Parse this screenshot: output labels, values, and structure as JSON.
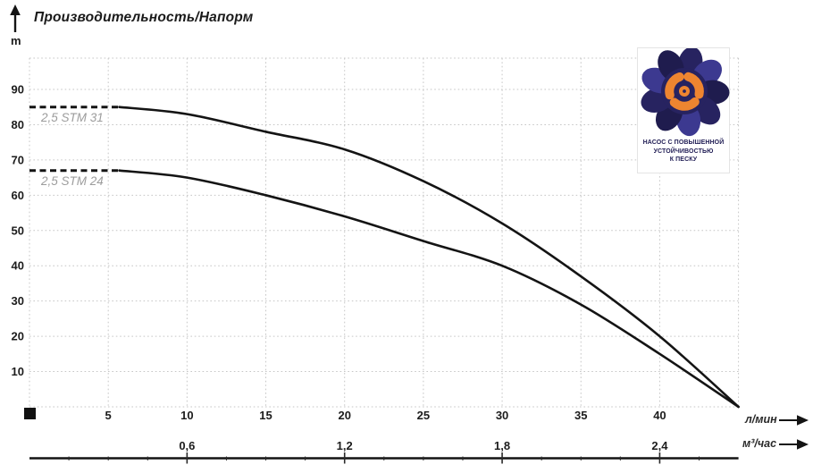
{
  "title": "Производительность/Напорм",
  "y_unit_label": "m",
  "axis1_unit": "л/мин",
  "axis2_unit": "м³/час",
  "logo": {
    "line1": "НАСОС С ПОВЫШЕННОЙ",
    "line2": "УСТОЙЧИВОСТЬЮ",
    "line3": "К ПЕСКУ"
  },
  "colors": {
    "curve": "#141414",
    "grid": "#c6c6c6",
    "axis": "#141414",
    "series_label": "#9c9c9c",
    "logo_navy": "#272360",
    "logo_navy_light": "#3c3990",
    "logo_navy_dark": "#1f1c4e",
    "logo_orange": "#ee8530"
  },
  "chart_data": {
    "type": "line",
    "title": "Производительность/Напорм",
    "ylabel": "m",
    "grid": true,
    "ylim": [
      0,
      99
    ],
    "y_ticks": [
      10,
      20,
      30,
      40,
      50,
      60,
      70,
      80,
      90
    ],
    "x_axes": [
      {
        "unit": "л/мин",
        "range": [
          0,
          45
        ],
        "ticks": [
          5,
          10,
          15,
          20,
          25,
          30,
          35,
          40
        ]
      },
      {
        "unit": "м³/час",
        "tick_labels": [
          "0,6",
          "1,2",
          "1,8",
          "2,4"
        ],
        "tick_positions_lmin": [
          10,
          20,
          30,
          40
        ]
      }
    ],
    "series": [
      {
        "name": "2,5 STM 31",
        "x": [
          0,
          5,
          10,
          15,
          20,
          25,
          30,
          35,
          40,
          45
        ],
        "y": [
          85,
          85,
          83,
          78,
          73,
          64,
          52,
          37,
          20,
          0
        ],
        "dashed_until_x": 5.7
      },
      {
        "name": "2,5 STM 24",
        "x": [
          0,
          5,
          10,
          15,
          20,
          25,
          30,
          35,
          40,
          45
        ],
        "y": [
          67,
          67,
          65,
          60,
          54,
          47,
          40,
          29,
          15,
          0
        ],
        "dashed_until_x": 5.7
      }
    ]
  }
}
